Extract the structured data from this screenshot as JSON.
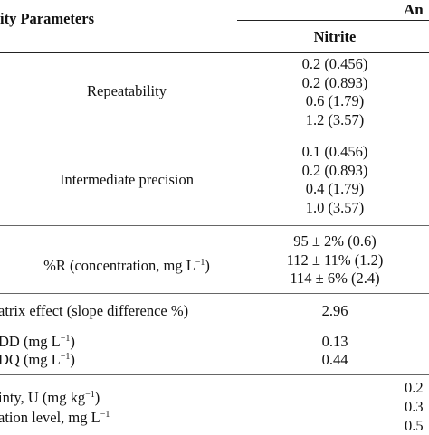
{
  "header": {
    "params_label": "ity Parameters",
    "group_label": "An",
    "analyte_label": "Nitrite"
  },
  "rows": {
    "repeatability": {
      "label": "Repeatability",
      "values": [
        "0.2 (0.456)",
        "0.2 (0.893)",
        "0.6 (1.79)",
        "1.2 (3.57)"
      ]
    },
    "intermediate": {
      "label": "Intermediate precision",
      "values": [
        "0.1 (0.456)",
        "0.2 (0.893)",
        "0.4 (1.79)",
        "1.0 (3.57)"
      ]
    },
    "recovery": {
      "label_main": "%R (concentration, mg L",
      "label_sup": "−1",
      "label_end": ")",
      "values": [
        "95 ± 2% (0.6)",
        "112 ± 11% (1.2)",
        "114 ± 6% (2.4)"
      ]
    },
    "matrix": {
      "label": "atrix effect (slope difference %)",
      "value": "2.96"
    },
    "lod": {
      "label_main": "DD (mg L",
      "label_sup": "−1",
      "label_end": ")",
      "value": "0.13"
    },
    "loq": {
      "label_main": "DQ (mg L",
      "label_sup": "−1",
      "label_end": ")",
      "value": "0.44"
    },
    "uncertainty": {
      "label_main": "inty, U (mg kg",
      "label_sup": "−1",
      "label_end": ")",
      "values": [
        "0.2",
        "0.3",
        "0.5"
      ]
    },
    "concentration_level": {
      "label_main": "ation level, mg L",
      "label_sup": "−1"
    }
  }
}
